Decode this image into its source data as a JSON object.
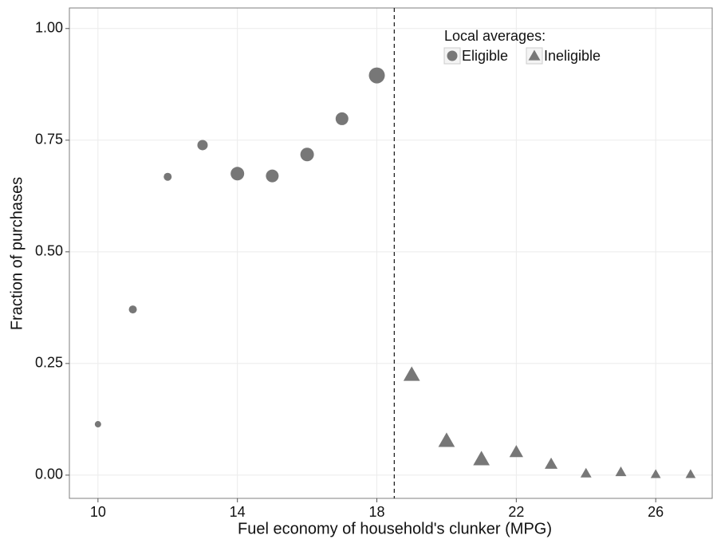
{
  "chart_data": {
    "type": "scatter",
    "x_label": "Fuel economy of household's clunker (MPG)",
    "y_label": "Fraction of purchases",
    "legend_title": "Local averages:",
    "xlim": [
      9.18,
      27.62
    ],
    "xticks": [
      10,
      14,
      18,
      22,
      26
    ],
    "ylim": [
      -0.052,
      1.046
    ],
    "yticks": [
      {
        "value": 0,
        "label": "0.00"
      },
      {
        "value": 0.25,
        "label": "0.25"
      },
      {
        "value": 0.5,
        "label": "0.50"
      },
      {
        "value": 0.75,
        "label": "0.75"
      },
      {
        "value": 1,
        "label": "1.00"
      }
    ],
    "grid": true,
    "vline": 18.5,
    "series": [
      {
        "name": "Eligible",
        "shape": "circle",
        "color": "#777777",
        "x": [
          10,
          11,
          12,
          13,
          14,
          15,
          16,
          17,
          18
        ],
        "values": [
          0.114,
          0.371,
          0.668,
          0.739,
          0.675,
          0.67,
          0.718,
          0.798,
          0.895
        ],
        "sizes": [
          4,
          5,
          5,
          6.5,
          8.5,
          8,
          8.5,
          8,
          10
        ]
      },
      {
        "name": "Ineligible",
        "shape": "triangle",
        "color": "#777777",
        "x": [
          19,
          20,
          21,
          22,
          23,
          24,
          25,
          26,
          27
        ],
        "values": [
          0.225,
          0.077,
          0.036,
          0.052,
          0.025,
          0.004,
          0.007,
          0.002,
          0.002
        ],
        "sizes": [
          9,
          9,
          9,
          7.5,
          7,
          6,
          6,
          5.5,
          5.5
        ]
      }
    ]
  }
}
